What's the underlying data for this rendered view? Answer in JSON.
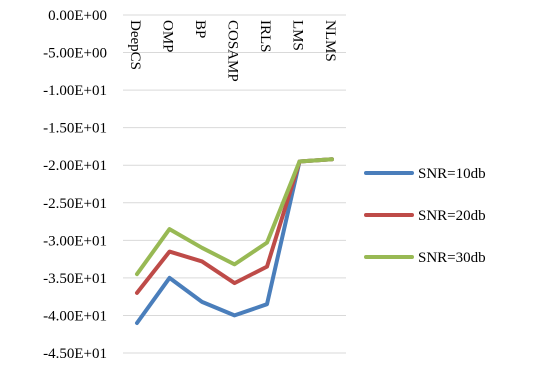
{
  "chart_data": {
    "type": "line",
    "categories": [
      "DeepCS",
      "OMP",
      "BP",
      "COSAMP",
      "IRLS",
      "LMS",
      "NLMS"
    ],
    "series": [
      {
        "name": "SNR=10db",
        "color": "#4a7ebb",
        "values": [
          -41.0,
          -35.0,
          -38.2,
          -40.0,
          -38.5,
          -19.5,
          -19.2
        ]
      },
      {
        "name": "SNR=20db",
        "color": "#be4b48",
        "values": [
          -37.0,
          -31.5,
          -32.8,
          -35.7,
          -33.5,
          -19.5,
          -19.2
        ]
      },
      {
        "name": "SNR=30db",
        "color": "#98b954",
        "values": [
          -34.5,
          -28.5,
          -31.0,
          -33.2,
          -30.3,
          -19.5,
          -19.2
        ]
      }
    ],
    "y_ticks": [
      "0.00E+00",
      "-5.00E+00",
      "-1.00E+01",
      "-1.50E+01",
      "-2.00E+01",
      "-2.50E+01",
      "-3.00E+01",
      "-3.50E+01",
      "-4.00E+01",
      "-4.50E+01"
    ],
    "ylim": [
      -45,
      0
    ],
    "grid": true,
    "legend_position": "right"
  }
}
